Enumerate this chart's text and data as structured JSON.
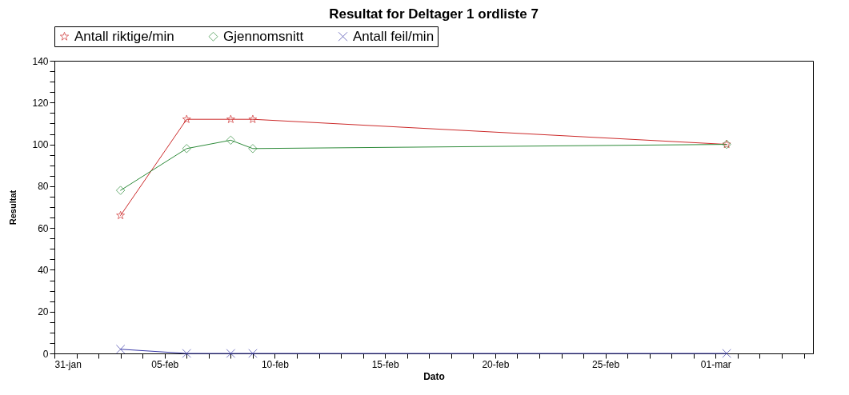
{
  "chart_data": {
    "type": "line",
    "title": "Resultat for Deltager 1 ordliste 7",
    "xlabel": "Dato",
    "ylabel": "Resultat",
    "x": [
      "--02-03",
      "--02-06",
      "--02-08",
      "--02-09",
      "--03-01T12:00"
    ],
    "series": [
      {
        "name": "Antall riktige/min",
        "color": "#cc2a2a",
        "marker": "star",
        "values": [
          66,
          112,
          112,
          112,
          100
        ]
      },
      {
        "name": "Gjennomsnitt",
        "color": "#2e8b3a",
        "marker": "diamond",
        "values": [
          78,
          98,
          102,
          98,
          100
        ]
      },
      {
        "name": "Antall feil/min",
        "color": "#3a3aa8",
        "marker": "cross",
        "values": [
          2,
          0,
          0,
          0,
          0
        ]
      }
    ],
    "xlim": [
      "--01-31",
      "--03-05T10:00"
    ],
    "xticks": [
      {
        "value": "--01-31",
        "label": "31-jan"
      },
      {
        "value": "--02-01",
        "label": null
      },
      {
        "value": "--02-02",
        "label": null
      },
      {
        "value": "--02-03",
        "label": null
      },
      {
        "value": "--02-04",
        "label": null
      },
      {
        "value": "--02-05",
        "label": "05-feb"
      },
      {
        "value": "--02-06",
        "label": null
      },
      {
        "value": "--02-07",
        "label": null
      },
      {
        "value": "--02-08",
        "label": null
      },
      {
        "value": "--02-09",
        "label": null
      },
      {
        "value": "--02-10",
        "label": "10-feb"
      },
      {
        "value": "--02-11",
        "label": null
      },
      {
        "value": "--02-12",
        "label": null
      },
      {
        "value": "--02-13",
        "label": null
      },
      {
        "value": "--02-14",
        "label": null
      },
      {
        "value": "--02-15",
        "label": "15-feb"
      },
      {
        "value": "--02-16",
        "label": null
      },
      {
        "value": "--02-17",
        "label": null
      },
      {
        "value": "--02-18",
        "label": null
      },
      {
        "value": "--02-19",
        "label": null
      },
      {
        "value": "--02-20",
        "label": "20-feb"
      },
      {
        "value": "--02-21",
        "label": null
      },
      {
        "value": "--02-22",
        "label": null
      },
      {
        "value": "--02-23",
        "label": null
      },
      {
        "value": "--02-24",
        "label": null
      },
      {
        "value": "--02-25",
        "label": "25-feb"
      },
      {
        "value": "--02-26",
        "label": null
      },
      {
        "value": "--02-27",
        "label": null
      },
      {
        "value": "--02-28",
        "label": null
      },
      {
        "value": "--02-29",
        "label": null
      },
      {
        "value": "--03-01",
        "label": "01-mar"
      },
      {
        "value": "--03-02",
        "label": null
      },
      {
        "value": "--03-03",
        "label": null
      },
      {
        "value": "--03-04",
        "label": null
      },
      {
        "value": "--03-05",
        "label": null
      }
    ],
    "ylim": [
      0,
      140
    ],
    "yticks": [
      0,
      {
        "value": 5,
        "label": null
      },
      {
        "value": 10,
        "label": null
      },
      {
        "value": 15,
        "label": null
      },
      20,
      {
        "value": 25,
        "label": null
      },
      {
        "value": 30,
        "label": null
      },
      {
        "value": 35,
        "label": null
      },
      40,
      {
        "value": 45,
        "label": null
      },
      {
        "value": 50,
        "label": null
      },
      {
        "value": 55,
        "label": null
      },
      60,
      {
        "value": 65,
        "label": null
      },
      {
        "value": 70,
        "label": null
      },
      {
        "value": 75,
        "label": null
      },
      80,
      {
        "value": 85,
        "label": null
      },
      {
        "value": 90,
        "label": null
      },
      {
        "value": 95,
        "label": null
      },
      100,
      {
        "value": 105,
        "label": null
      },
      {
        "value": 110,
        "label": null
      },
      {
        "value": 115,
        "label": null
      },
      120,
      {
        "value": 125,
        "label": null
      },
      {
        "value": 130,
        "label": null
      },
      {
        "value": 135,
        "label": null
      },
      140
    ],
    "legend": "top",
    "line_style": "solid"
  }
}
